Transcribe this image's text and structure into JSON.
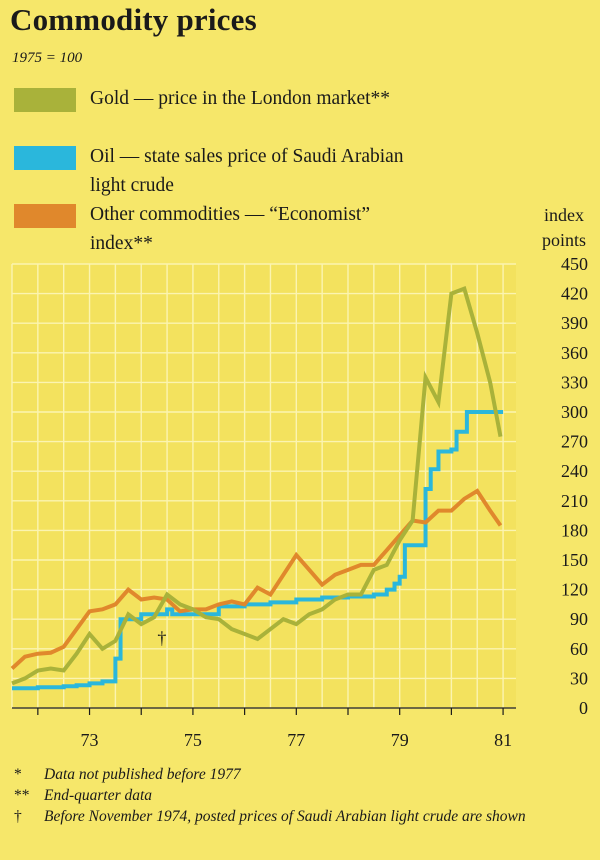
{
  "header": {
    "title": "Commodity prices",
    "base_note": "1975 = 100"
  },
  "legend": [
    {
      "label": "Gold — price in the London market**",
      "color": "#a9b23a"
    },
    {
      "label": "Oil — state sales price of Saudi Arabian light crude",
      "color": "#2ab7dc"
    },
    {
      "label": "Other commodities — “Economist” index**",
      "color": "#e0882c"
    }
  ],
  "notes": [
    {
      "mark": "*",
      "text": "Data not published before 1977"
    },
    {
      "mark": "**",
      "text": "End-quarter data"
    },
    {
      "mark": "†",
      "text": "Before November 1974, posted prices of Saudi Arabian light crude are shown"
    }
  ],
  "chart_data": {
    "type": "line",
    "title": "Commodity prices",
    "subtitle": "1975 = 100",
    "ylabel": "index points",
    "ylim": [
      0,
      450
    ],
    "yticks": [
      0,
      30,
      60,
      90,
      120,
      150,
      180,
      210,
      240,
      270,
      300,
      330,
      360,
      390,
      420,
      450
    ],
    "xlim": [
      1971.5,
      1981.25
    ],
    "xticks": [
      {
        "v": 1973,
        "label": "73"
      },
      {
        "v": 1975,
        "label": "75"
      },
      {
        "v": 1977,
        "label": "77"
      },
      {
        "v": 1979,
        "label": "79"
      },
      {
        "v": 1981,
        "label": "81"
      }
    ],
    "grid": true,
    "annotations": [
      {
        "text": "†",
        "x": 1974.4,
        "y": 65
      }
    ],
    "series": [
      {
        "name": "Gold — price in the London market**",
        "color": "#a9b23a",
        "step": false,
        "points": [
          [
            1971.5,
            25
          ],
          [
            1971.75,
            30
          ],
          [
            1972.0,
            38
          ],
          [
            1972.25,
            40
          ],
          [
            1972.5,
            38
          ],
          [
            1972.75,
            55
          ],
          [
            1973.0,
            75
          ],
          [
            1973.25,
            60
          ],
          [
            1973.5,
            68
          ],
          [
            1973.75,
            95
          ],
          [
            1974.0,
            85
          ],
          [
            1974.25,
            92
          ],
          [
            1974.5,
            115
          ],
          [
            1974.75,
            105
          ],
          [
            1975.0,
            100
          ],
          [
            1975.25,
            92
          ],
          [
            1975.5,
            90
          ],
          [
            1975.75,
            80
          ],
          [
            1976.0,
            75
          ],
          [
            1976.25,
            70
          ],
          [
            1976.5,
            80
          ],
          [
            1976.75,
            90
          ],
          [
            1977.0,
            85
          ],
          [
            1977.25,
            95
          ],
          [
            1977.5,
            100
          ],
          [
            1977.75,
            110
          ],
          [
            1978.0,
            115
          ],
          [
            1978.25,
            115
          ],
          [
            1978.5,
            140
          ],
          [
            1978.75,
            145
          ],
          [
            1979.0,
            170
          ],
          [
            1979.25,
            190
          ],
          [
            1979.5,
            335
          ],
          [
            1979.75,
            310
          ],
          [
            1980.0,
            420
          ],
          [
            1980.25,
            425
          ],
          [
            1980.5,
            380
          ],
          [
            1980.75,
            330
          ],
          [
            1980.95,
            275
          ]
        ]
      },
      {
        "name": "Oil — state sales price of Saudi Arabian light crude",
        "color": "#2ab7dc",
        "step": true,
        "points": [
          [
            1971.5,
            20
          ],
          [
            1972.0,
            21
          ],
          [
            1972.5,
            22
          ],
          [
            1972.75,
            23
          ],
          [
            1973.0,
            25
          ],
          [
            1973.25,
            27
          ],
          [
            1973.5,
            50
          ],
          [
            1973.6,
            90
          ],
          [
            1974.0,
            95
          ],
          [
            1974.5,
            100
          ],
          [
            1974.6,
            95
          ],
          [
            1975.5,
            103
          ],
          [
            1976.0,
            105
          ],
          [
            1976.5,
            107
          ],
          [
            1977.0,
            110
          ],
          [
            1977.5,
            112
          ],
          [
            1978.0,
            113
          ],
          [
            1978.5,
            115
          ],
          [
            1978.75,
            120
          ],
          [
            1978.9,
            126
          ],
          [
            1979.0,
            133
          ],
          [
            1979.1,
            165
          ],
          [
            1979.5,
            222
          ],
          [
            1979.6,
            242
          ],
          [
            1979.75,
            260
          ],
          [
            1980.0,
            262
          ],
          [
            1980.1,
            280
          ],
          [
            1980.25,
            280
          ],
          [
            1980.3,
            300
          ],
          [
            1981.0,
            300
          ]
        ]
      },
      {
        "name": "Other commodities — “Economist” index**",
        "color": "#e0882c",
        "step": false,
        "points": [
          [
            1971.5,
            40
          ],
          [
            1971.75,
            52
          ],
          [
            1972.0,
            55
          ],
          [
            1972.25,
            56
          ],
          [
            1972.5,
            62
          ],
          [
            1972.75,
            80
          ],
          [
            1973.0,
            98
          ],
          [
            1973.25,
            100
          ],
          [
            1973.5,
            105
          ],
          [
            1973.75,
            120
          ],
          [
            1974.0,
            110
          ],
          [
            1974.25,
            112
          ],
          [
            1974.5,
            110
          ],
          [
            1974.75,
            98
          ],
          [
            1975.0,
            100
          ],
          [
            1975.25,
            100
          ],
          [
            1975.5,
            105
          ],
          [
            1975.75,
            108
          ],
          [
            1976.0,
            105
          ],
          [
            1976.25,
            122
          ],
          [
            1976.5,
            115
          ],
          [
            1976.75,
            135
          ],
          [
            1977.0,
            155
          ],
          [
            1977.25,
            140
          ],
          [
            1977.5,
            125
          ],
          [
            1977.75,
            135
          ],
          [
            1978.0,
            140
          ],
          [
            1978.25,
            145
          ],
          [
            1978.5,
            145
          ],
          [
            1978.75,
            160
          ],
          [
            1979.0,
            175
          ],
          [
            1979.25,
            190
          ],
          [
            1979.5,
            188
          ],
          [
            1979.75,
            200
          ],
          [
            1980.0,
            200
          ],
          [
            1980.25,
            212
          ],
          [
            1980.5,
            220
          ],
          [
            1980.75,
            200
          ],
          [
            1980.95,
            185
          ]
        ]
      }
    ]
  }
}
